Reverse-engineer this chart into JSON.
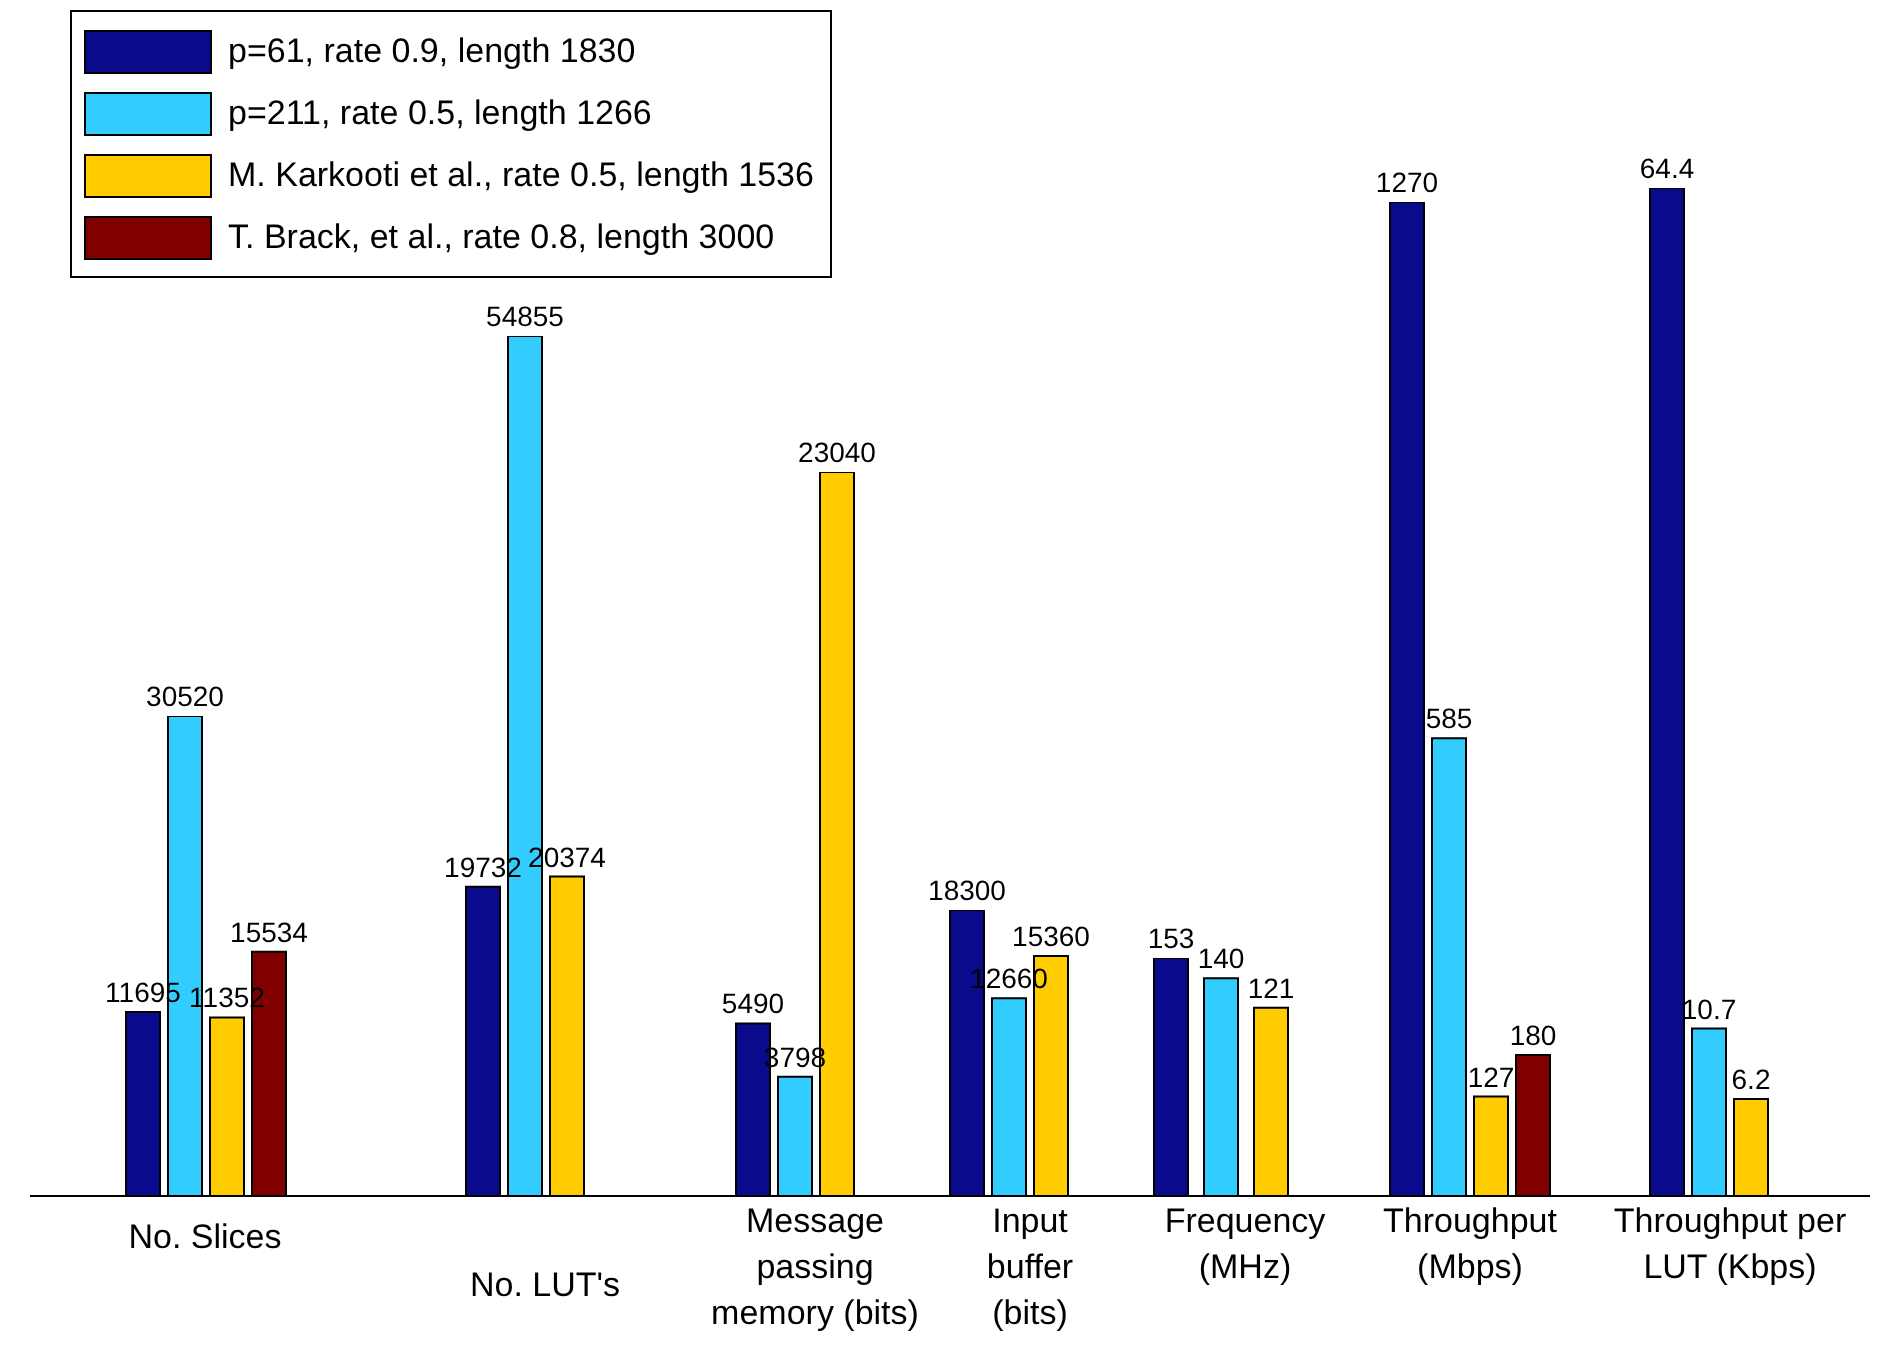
{
  "chart_data": [
    {
      "type": "bar",
      "categories": [
        "No. Slices"
      ],
      "data_labels": true,
      "legend": "top right",
      "series": [
        {
          "name": "p=61, rate 0.9, length 1830",
          "color": "#0a0a8c",
          "values": [
            11695
          ]
        },
        {
          "name": "p=211, rate 0.5, length 1266",
          "color": "#33ccff",
          "values": [
            30520
          ]
        },
        {
          "name": "M. Karkooti et al., rate 0.5, length 1536",
          "color": "#ffcc00",
          "values": [
            11352
          ]
        },
        {
          "name": "T. Brack, et al., rate 0.8, length 3000",
          "color": "#800000",
          "values": [
            15534
          ]
        }
      ]
    },
    {
      "type": "bar",
      "categories": [
        "No. LUT's"
      ],
      "data_labels": true,
      "series": [
        {
          "color": "#0a0a8c",
          "values": [
            19732
          ]
        },
        {
          "color": "#33ccff",
          "values": [
            54855
          ]
        },
        {
          "color": "#ffcc00",
          "values": [
            20374
          ]
        },
        {
          "color": "#800000",
          "values": [
            null
          ]
        }
      ]
    },
    {
      "type": "bar",
      "categories": [
        "Message passing memory (bits)"
      ],
      "data_labels": true,
      "series": [
        {
          "color": "#0a0a8c",
          "values": [
            5490
          ]
        },
        {
          "color": "#33ccff",
          "values": [
            3798
          ]
        },
        {
          "color": "#ffcc00",
          "values": [
            23040
          ]
        },
        {
          "color": "#800000",
          "values": [
            null
          ]
        }
      ]
    },
    {
      "type": "bar",
      "categories": [
        "Input buffer (bits)"
      ],
      "data_labels": true,
      "series": [
        {
          "color": "#0a0a8c",
          "values": [
            18300
          ]
        },
        {
          "color": "#33ccff",
          "values": [
            12660
          ]
        },
        {
          "color": "#ffcc00",
          "values": [
            15360
          ]
        },
        {
          "color": "#800000",
          "values": [
            null
          ]
        }
      ]
    },
    {
      "type": "bar",
      "categories": [
        "Frequency (MHz)"
      ],
      "data_labels": true,
      "series": [
        {
          "color": "#0a0a8c",
          "values": [
            153
          ]
        },
        {
          "color": "#33ccff",
          "values": [
            140
          ]
        },
        {
          "color": "#ffcc00",
          "values": [
            121
          ]
        },
        {
          "color": "#800000",
          "values": [
            null
          ]
        }
      ]
    },
    {
      "type": "bar",
      "categories": [
        "Throughput (Mbps)"
      ],
      "data_labels": true,
      "series": [
        {
          "color": "#0a0a8c",
          "values": [
            1270
          ]
        },
        {
          "color": "#33ccff",
          "values": [
            585
          ]
        },
        {
          "color": "#ffcc00",
          "values": [
            127
          ]
        },
        {
          "color": "#800000",
          "values": [
            180
          ]
        }
      ]
    },
    {
      "type": "bar",
      "categories": [
        "Throughput per LUT (Kbps)"
      ],
      "data_labels": true,
      "series": [
        {
          "color": "#0a0a8c",
          "values": [
            64.4
          ]
        },
        {
          "color": "#33ccff",
          "values": [
            10.7
          ]
        },
        {
          "color": "#ffcc00",
          "values": [
            6.2
          ]
        },
        {
          "color": "#800000",
          "values": [
            null
          ]
        }
      ]
    }
  ]
}
